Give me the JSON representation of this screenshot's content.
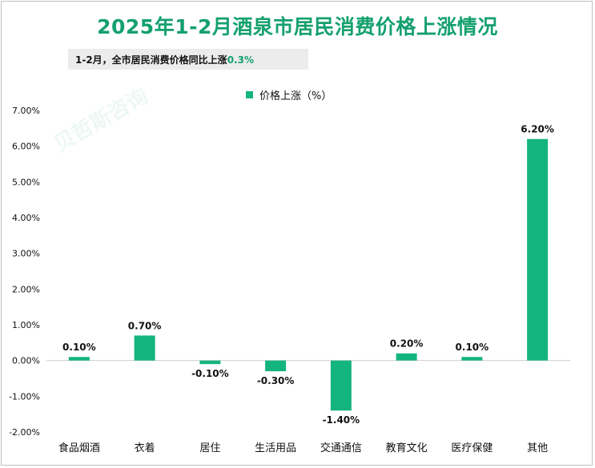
{
  "title": "2025年1-2月酒泉市居民消费价格上涨情况",
  "subtitle": {
    "prefix": "1-2月，全市居民消费价格同比上涨",
    "value": "0.3%"
  },
  "watermark": "贝哲斯咨询",
  "colors": {
    "accent": "#14a06e",
    "bar": "#14b47e"
  },
  "chart_data": {
    "type": "bar",
    "categories": [
      "食品烟酒",
      "衣着",
      "居住",
      "生活用品",
      "交通通信",
      "教育文化",
      "医疗保健",
      "其他"
    ],
    "series": [
      {
        "name": "价格上涨（%）",
        "values": [
          0.1,
          0.7,
          -0.1,
          -0.3,
          -1.4,
          0.2,
          0.1,
          6.2
        ]
      }
    ],
    "data_labels": [
      "0.10%",
      "0.70%",
      "-0.10%",
      "-0.30%",
      "-1.40%",
      "0.20%",
      "0.10%",
      "6.20%"
    ],
    "y_ticks": [
      "7.00%",
      "6.00%",
      "5.00%",
      "4.00%",
      "3.00%",
      "2.00%",
      "1.00%",
      "0.00%",
      "-1.00%",
      "-2.00%"
    ],
    "ylim": [
      -2,
      7
    ],
    "grid": false,
    "legend_position": "top-center",
    "title": "2025年1-2月酒泉市居民消费价格上涨情况"
  }
}
